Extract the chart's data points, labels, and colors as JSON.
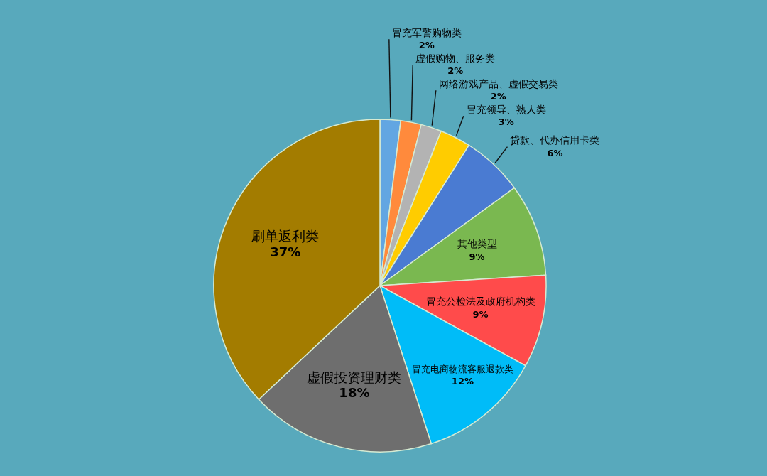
{
  "chart_data": {
    "type": "pie",
    "categories": [
      "冒充军警购物类",
      "虚假购物、服务类",
      "网络游戏产品、虚假交易类",
      "冒充领导、熟人类",
      "贷款、代办信用卡类",
      "其他类型",
      "冒充公检法及政府机构类",
      "冒充电商物流客服退款类",
      "虚假投资理财类",
      "刷单返利类"
    ],
    "values": [
      2,
      2,
      2,
      3,
      6,
      9,
      9,
      12,
      18,
      37
    ],
    "colors": [
      "#62a6e2",
      "#ff8a3c",
      "#b3b3b3",
      "#ffcc00",
      "#4a7bd2",
      "#7ab850",
      "#ff4b4b",
      "#00bcf8",
      "#6e6e6e",
      "#a37c00"
    ],
    "value_labels": [
      "2%",
      "2%",
      "2%",
      "3%",
      "6%",
      "9%",
      "9%",
      "12%",
      "18%",
      "37%"
    ]
  }
}
